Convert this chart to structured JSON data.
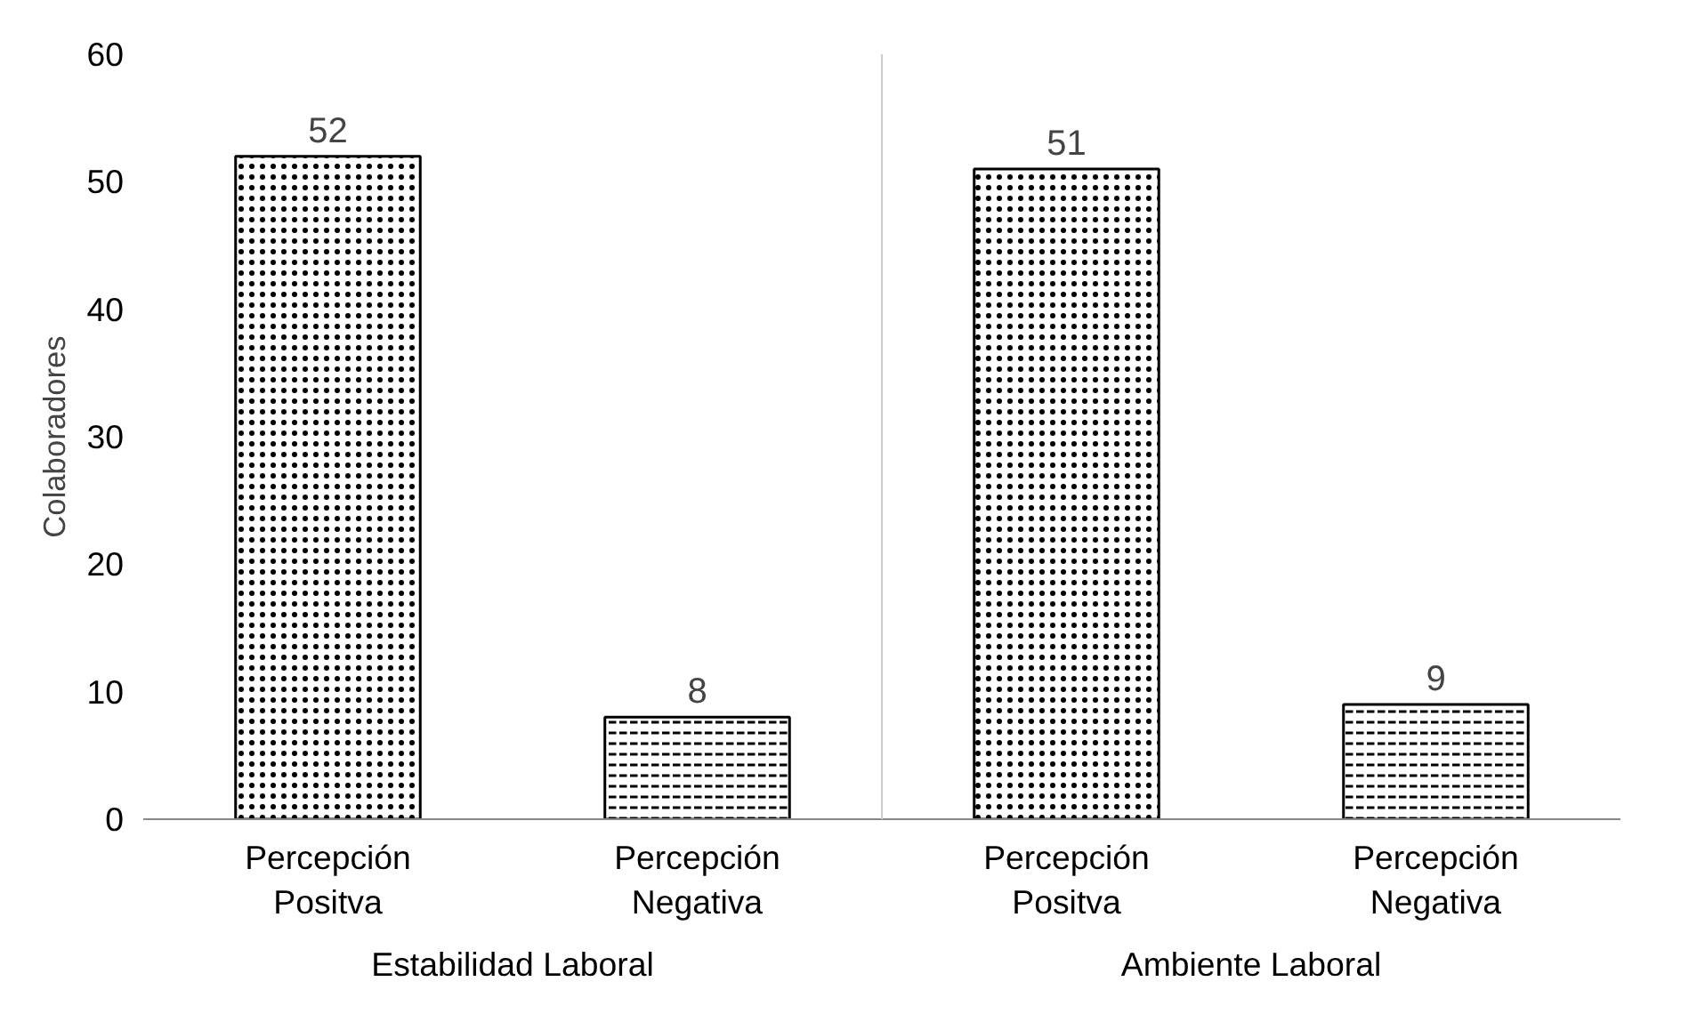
{
  "chart_data": {
    "type": "bar",
    "ylabel": "Colaboradores",
    "categories": [
      "Percepción\nPositva",
      "Percepción\nNegativa",
      "Percepción\nPositva",
      "Percepción\nNegativa"
    ],
    "values": [
      52,
      8,
      51,
      9
    ],
    "colors": [
      "#000000",
      "#000000",
      "#000000",
      "#000000"
    ],
    "ylim": [
      0,
      60
    ],
    "yticks": [
      0,
      10,
      20,
      30,
      40,
      50,
      60
    ],
    "grid": false,
    "data_labels": true,
    "annotations": [
      "Estabilidad Laboral",
      "Ambiente Laboral"
    ]
  }
}
